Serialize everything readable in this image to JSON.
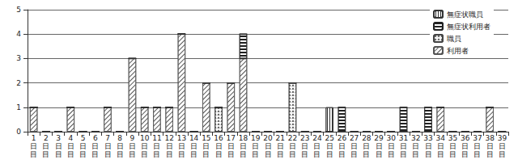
{
  "chart_data": {
    "type": "bar",
    "stacked": true,
    "grid": true,
    "legend": "top-right",
    "categories": [
      "1日目",
      "2日目",
      "3日目",
      "4日目",
      "5日目",
      "6日目",
      "7日目",
      "8日目",
      "9日目",
      "10日目",
      "11日目",
      "12日目",
      "13日目",
      "14日目",
      "15日目",
      "16日目",
      "17日目",
      "18日目",
      "19日目",
      "20日目",
      "21日目",
      "22日目",
      "23日目",
      "24日目",
      "25日目",
      "26日目",
      "27日目",
      "28日目",
      "29日目",
      "30日目",
      "31日目",
      "32日目",
      "33日目",
      "34日目",
      "35日目",
      "36日目",
      "37日目",
      "38日目",
      "39日目"
    ],
    "ylim": [
      0,
      5
    ],
    "yticks": [
      0,
      1,
      2,
      3,
      4,
      5
    ],
    "series": [
      {
        "name": "無症状職員",
        "color": "#333333",
        "marker": "vertical_stripes",
        "values": [
          0,
          0,
          0,
          0,
          0,
          0,
          0,
          0,
          0,
          0,
          0,
          0,
          0,
          0,
          0,
          0,
          0,
          0,
          0,
          0,
          0,
          0,
          0,
          0,
          1,
          0,
          0,
          0,
          0,
          0,
          0,
          0,
          0,
          0,
          0,
          0,
          0,
          0,
          0
        ]
      },
      {
        "name": "無症状利用者",
        "color": "#222222",
        "marker": "horizontal_stripes",
        "values": [
          0,
          0,
          0,
          0,
          0,
          0,
          0,
          0,
          0,
          0,
          0,
          0,
          0,
          0,
          0,
          0,
          0,
          1,
          0,
          0,
          0,
          0,
          0,
          0,
          0,
          1,
          0,
          0,
          0,
          0,
          1,
          0,
          1,
          0,
          0,
          0,
          0,
          0,
          0
        ]
      },
      {
        "name": "職員",
        "color": "#444444",
        "marker": "zigzag",
        "values": [
          0,
          0,
          0,
          0,
          0,
          0,
          0,
          0,
          0,
          0,
          0,
          0,
          0,
          0,
          0,
          1,
          0,
          0,
          0,
          0,
          0,
          2,
          0,
          0,
          0,
          0,
          0,
          0,
          0,
          0,
          0,
          0,
          0,
          0,
          0,
          0,
          0,
          0,
          0
        ]
      },
      {
        "name": "利用者",
        "color": "#555555",
        "marker": "diagonal_hatch",
        "values": [
          1,
          0,
          0,
          1,
          0,
          0,
          1,
          0,
          3,
          1,
          1,
          1,
          4,
          0,
          2,
          0,
          2,
          3,
          0,
          0,
          0,
          0,
          0,
          0,
          0,
          0,
          0,
          0,
          0,
          0,
          0,
          0,
          0,
          1,
          0,
          0,
          0,
          1,
          0
        ]
      }
    ]
  }
}
